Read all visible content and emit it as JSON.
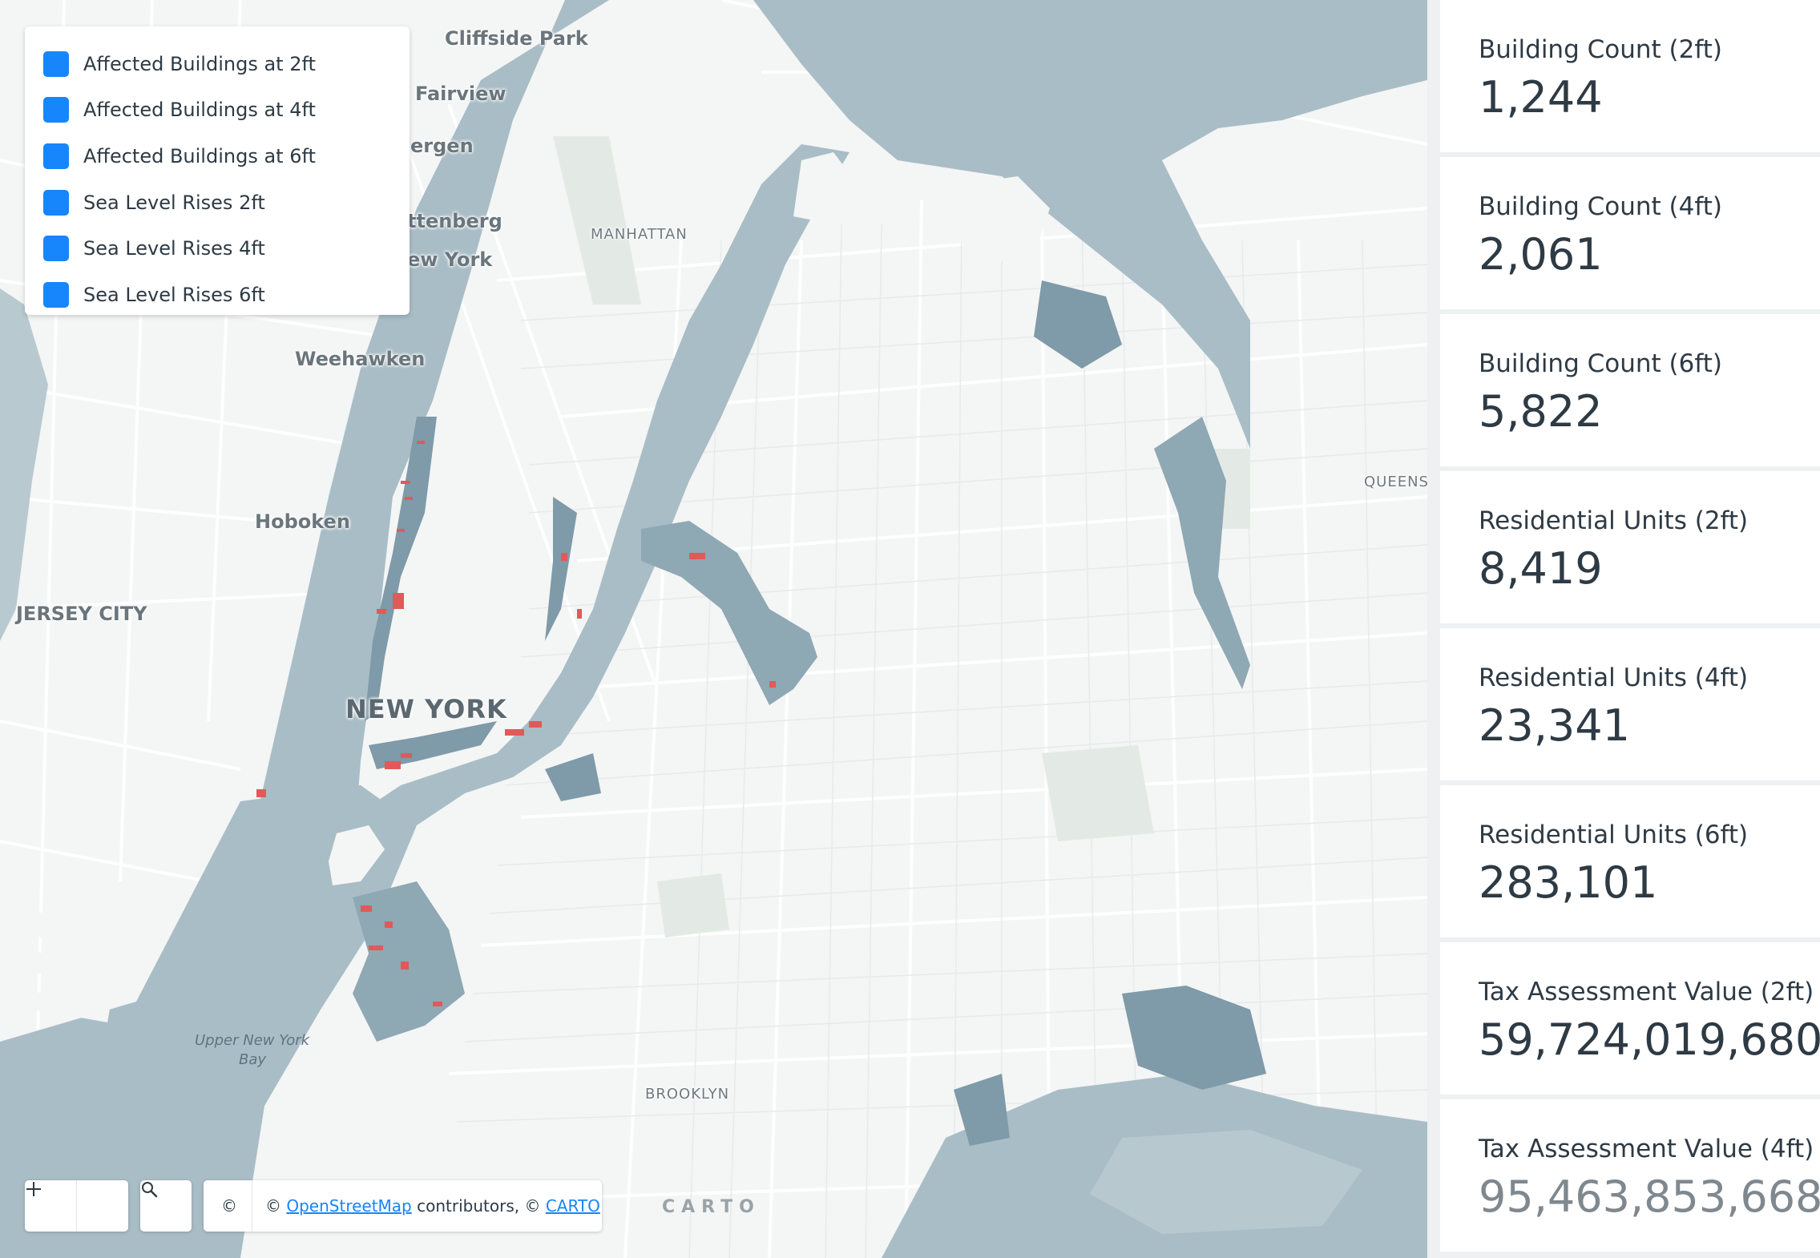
{
  "legend": {
    "items": [
      {
        "label": "Affected Buildings at 2ft",
        "checked": true
      },
      {
        "label": "Affected Buildings at 4ft",
        "checked": true
      },
      {
        "label": "Affected Buildings at 6ft",
        "checked": true
      },
      {
        "label": "Sea Level Rises 2ft",
        "checked": true
      },
      {
        "label": "Sea Level Rises 4ft",
        "checked": true
      },
      {
        "label": "Sea Level Rises 6ft",
        "checked": true
      }
    ]
  },
  "map": {
    "labels": {
      "cliffside_park": "Cliffside Park",
      "fairview": "Fairview",
      "bergen": "ergen",
      "guttenberg": "ttenberg",
      "west_new_york": "ew York",
      "weehawken": "Weehawken",
      "hoboken": "Hoboken",
      "jersey_city": "JERSEY CITY",
      "new_york": "NEW YORK",
      "manhattan": "MANHATTAN",
      "queens": "QUEENS",
      "brooklyn": "BROOKLYN",
      "upper_bay_1": "Upper New York",
      "upper_bay_2": "Bay"
    },
    "colors": {
      "land": "#f4f5f5",
      "water": "#a9bdc6",
      "flood": "#7f9aa8",
      "buildings": "#e05a5a",
      "roads": "#ffffff",
      "parks": "#e4ebe6"
    }
  },
  "controls": {
    "zoom_out_icon": "minus-icon",
    "zoom_in_icon": "plus-icon",
    "search_icon": "search-icon",
    "attribution_symbol": "©",
    "attribution_prefix": "© ",
    "osm_link": "OpenStreetMap",
    "attribution_middle": " contributors, © ",
    "carto_link": "CARTO",
    "logo": "CARTO"
  },
  "widgets": [
    {
      "title": "Building Count (2ft)",
      "value": "1,244"
    },
    {
      "title": "Building Count (4ft)",
      "value": "2,061"
    },
    {
      "title": "Building Count (6ft)",
      "value": "5,822"
    },
    {
      "title": "Residential Units (2ft)",
      "value": "8,419"
    },
    {
      "title": "Residential Units (4ft)",
      "value": "23,341"
    },
    {
      "title": "Residential Units (6ft)",
      "value": "283,101"
    },
    {
      "title": "Tax Assessment Value (2ft)",
      "value": "59,724,019,680"
    },
    {
      "title": "Tax Assessment Value (4ft)",
      "value": "95,463,853,668"
    }
  ]
}
